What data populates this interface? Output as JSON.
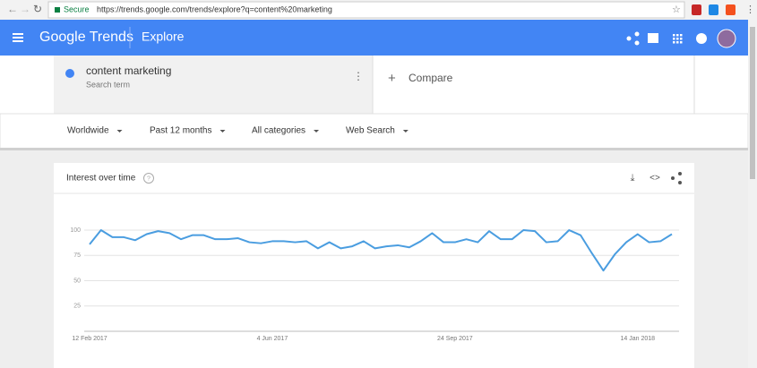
{
  "browser": {
    "secure": "Secure",
    "url": "https://trends.google.com/trends/explore?q=content%20marketing"
  },
  "header": {
    "logo": "Google Trends",
    "section": "Explore"
  },
  "search": {
    "term": "content marketing",
    "subtitle": "Search term",
    "compare": "Compare"
  },
  "filters": [
    "Worldwide",
    "Past 12 months",
    "All categories",
    "Web Search"
  ],
  "chart_data": {
    "type": "line",
    "title": "Interest over time",
    "categories": [
      "12 Feb 2017",
      null,
      null,
      null,
      null,
      null,
      null,
      null,
      null,
      null,
      null,
      null,
      null,
      null,
      null,
      null,
      "4 Jun 2017",
      null,
      null,
      null,
      null,
      null,
      null,
      null,
      null,
      null,
      null,
      null,
      null,
      null,
      null,
      null,
      "24 Sep 2017",
      null,
      null,
      null,
      null,
      null,
      null,
      null,
      null,
      null,
      null,
      null,
      null,
      null,
      null,
      null,
      "14 Jan 2018",
      null,
      null,
      null
    ],
    "values": [
      86,
      100,
      93,
      93,
      90,
      96,
      99,
      97,
      91,
      95,
      95,
      91,
      91,
      92,
      88,
      87,
      89,
      89,
      88,
      89,
      82,
      88,
      82,
      84,
      89,
      82,
      84,
      85,
      83,
      89,
      97,
      88,
      88,
      91,
      88,
      99,
      91,
      91,
      100,
      99,
      88,
      89,
      100,
      95,
      77,
      60,
      76,
      88,
      96,
      88,
      89,
      96
    ],
    "color": "#4a9de0",
    "ylim": [
      0,
      100
    ],
    "yticks": [
      25,
      50,
      75,
      100
    ],
    "grid": true
  }
}
